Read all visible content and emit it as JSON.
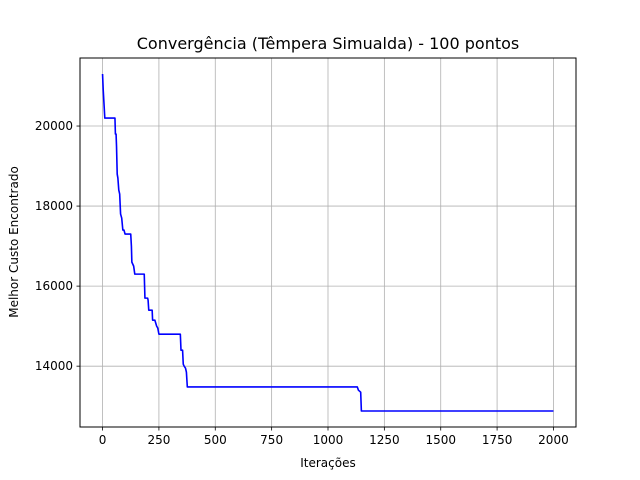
{
  "chart_data": {
    "type": "line",
    "title": "Convergência (Têmpera Simualda) - 100 pontos",
    "xlabel": "Iterações",
    "ylabel": "Melhor Custo Encontrado",
    "xlim": [
      -100,
      2100
    ],
    "ylim": [
      12480,
      21700
    ],
    "xticks": [
      0,
      250,
      500,
      750,
      1000,
      1250,
      1500,
      1750,
      2000
    ],
    "yticks": [
      14000,
      16000,
      18000,
      20000
    ],
    "grid": true,
    "series": [
      {
        "color": "#0000ff",
        "points": [
          [
            0,
            21300
          ],
          [
            3,
            20900
          ],
          [
            6,
            20600
          ],
          [
            10,
            20200
          ],
          [
            55,
            20200
          ],
          [
            57,
            19800
          ],
          [
            60,
            19800
          ],
          [
            62,
            19500
          ],
          [
            65,
            18800
          ],
          [
            68,
            18700
          ],
          [
            72,
            18400
          ],
          [
            76,
            18300
          ],
          [
            80,
            17800
          ],
          [
            85,
            17700
          ],
          [
            90,
            17400
          ],
          [
            95,
            17400
          ],
          [
            100,
            17300
          ],
          [
            125,
            17300
          ],
          [
            128,
            17000
          ],
          [
            130,
            16600
          ],
          [
            138,
            16500
          ],
          [
            143,
            16300
          ],
          [
            185,
            16300
          ],
          [
            188,
            15700
          ],
          [
            200,
            15700
          ],
          [
            202,
            15650
          ],
          [
            205,
            15400
          ],
          [
            220,
            15400
          ],
          [
            222,
            15150
          ],
          [
            232,
            15150
          ],
          [
            240,
            15000
          ],
          [
            245,
            14950
          ],
          [
            250,
            14800
          ],
          [
            345,
            14800
          ],
          [
            348,
            14400
          ],
          [
            355,
            14400
          ],
          [
            358,
            14050
          ],
          [
            362,
            14000
          ],
          [
            368,
            13950
          ],
          [
            372,
            13850
          ],
          [
            376,
            13480
          ],
          [
            1130,
            13480
          ],
          [
            1135,
            13400
          ],
          [
            1145,
            13350
          ],
          [
            1148,
            12880
          ],
          [
            2000,
            12880
          ]
        ]
      }
    ]
  }
}
